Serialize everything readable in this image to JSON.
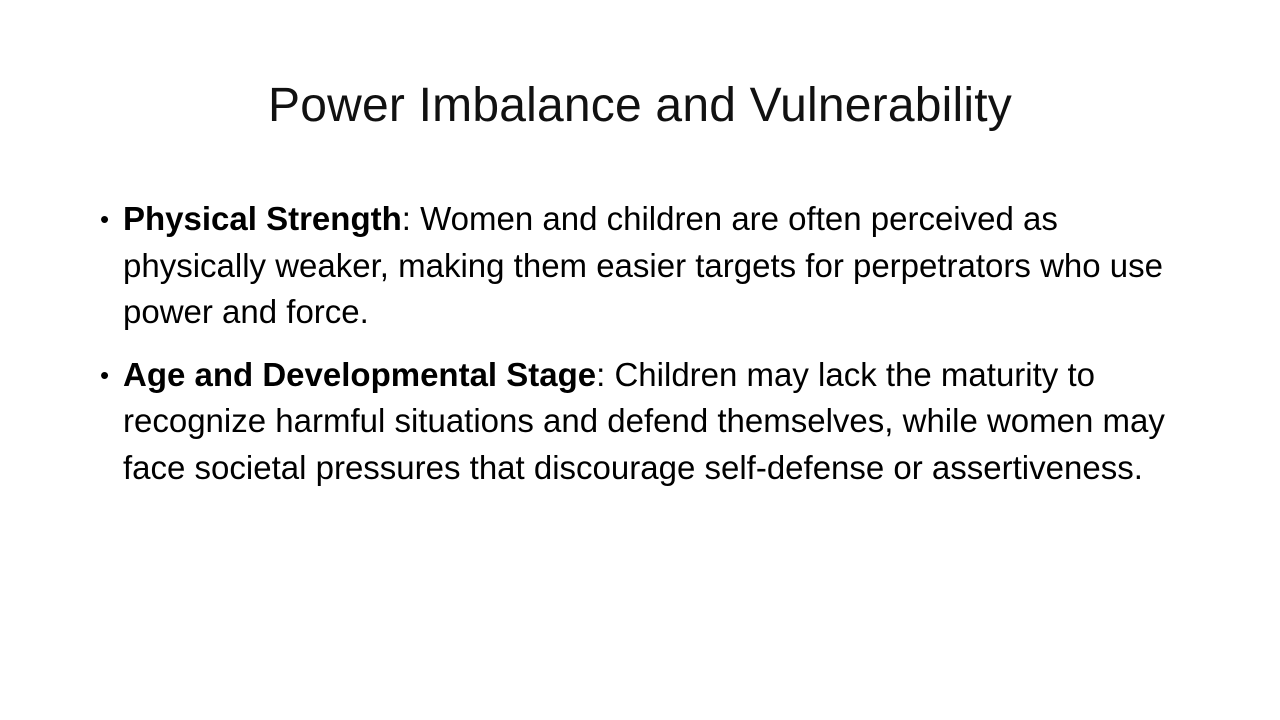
{
  "slide": {
    "title": "Power Imbalance and Vulnerability",
    "bullets": [
      {
        "term": "Physical Strength",
        "separator": ":",
        "text": " Women and children are often perceived as physically weaker, making them easier targets for perpetrators who use power and force."
      },
      {
        "term": "Age and Developmental Stage",
        "separator": ":",
        "text": " Children may lack the maturity to recognize harmful situations and defend themselves, while women may face societal pressures that discourage self-defense or assertiveness."
      }
    ],
    "bullet_glyph": "•"
  }
}
